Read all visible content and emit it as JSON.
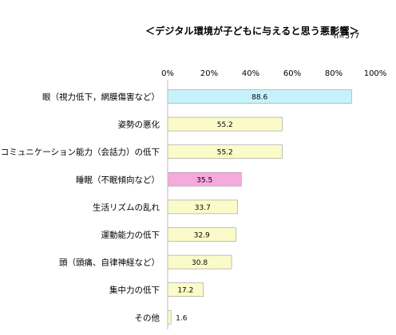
{
  "header": {
    "title": "＜デジタル環境が子どもに与えると思う悪影響＞",
    "sample": "n=377"
  },
  "chart_data": {
    "type": "bar",
    "orientation": "horizontal",
    "categories": [
      "眼（視力低下，網膜傷害など）",
      "姿勢の悪化",
      "コミュニケーション能力（会話力）の低下",
      "睡眠（不眠傾向など）",
      "生活リズムの乱れ",
      "運動能力の低下",
      "頭（頭痛、自律神経など）",
      "集中力の低下",
      "その他"
    ],
    "values": [
      88.6,
      55.2,
      55.2,
      35.5,
      33.7,
      32.9,
      30.8,
      17.2,
      1.6
    ],
    "data_labels": [
      "88.6",
      "55.2",
      "55.2",
      "35.5",
      "33.7",
      "32.9",
      "30.8",
      "17.2",
      "1.6"
    ],
    "bar_colors": [
      "#c6f3fb",
      "#fbfbc9",
      "#fbfbc9",
      "#f7a8dc",
      "#fbfbc9",
      "#fbfbc9",
      "#fbfbc9",
      "#fbfbc9",
      "#fbfbc9"
    ],
    "xlim": [
      0,
      100
    ],
    "xticks": [
      "0%",
      "20%",
      "40%",
      "60%",
      "80%",
      "100%"
    ],
    "xtick_values": [
      0,
      20,
      40,
      60,
      80,
      100
    ],
    "axis_position": "top",
    "grid": false,
    "legend": "none"
  }
}
